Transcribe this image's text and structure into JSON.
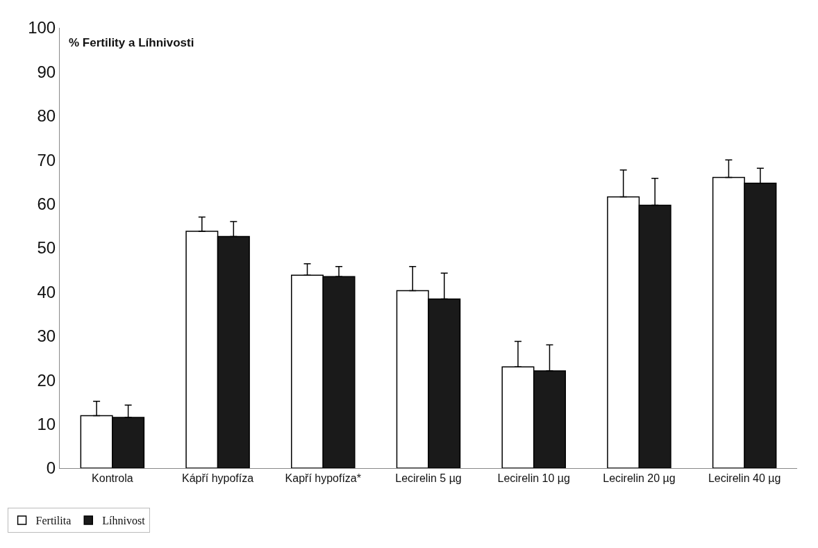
{
  "chart_data": {
    "type": "bar",
    "title": "% Fertility a Líhnivosti",
    "categories": [
      "Kontrola",
      "Kápří hypofíza",
      "Kapří hypofíza*",
      "Lecirelin 5 µg",
      "Lecirelin 10 µg",
      "Lecirelin 20 µg",
      "Lecirelin 40 µg"
    ],
    "series": [
      {
        "name": "Fertilita",
        "color": "#ffffff",
        "values": [
          11.9,
          53.8,
          43.8,
          40.3,
          23.0,
          61.6,
          66.0
        ],
        "errors": [
          3.3,
          3.2,
          2.6,
          5.5,
          5.8,
          6.1,
          4.0
        ]
      },
      {
        "name": "Líhnivost",
        "color": "#1a1a1a",
        "values": [
          11.5,
          52.6,
          43.5,
          38.4,
          22.1,
          59.7,
          64.7
        ],
        "errors": [
          2.8,
          3.4,
          2.3,
          5.9,
          5.9,
          6.1,
          3.4
        ]
      }
    ],
    "ylim": [
      0,
      100
    ],
    "yticks": [
      0,
      10,
      20,
      30,
      40,
      50,
      60,
      70,
      80,
      90,
      100
    ],
    "legend": "bottom left"
  }
}
